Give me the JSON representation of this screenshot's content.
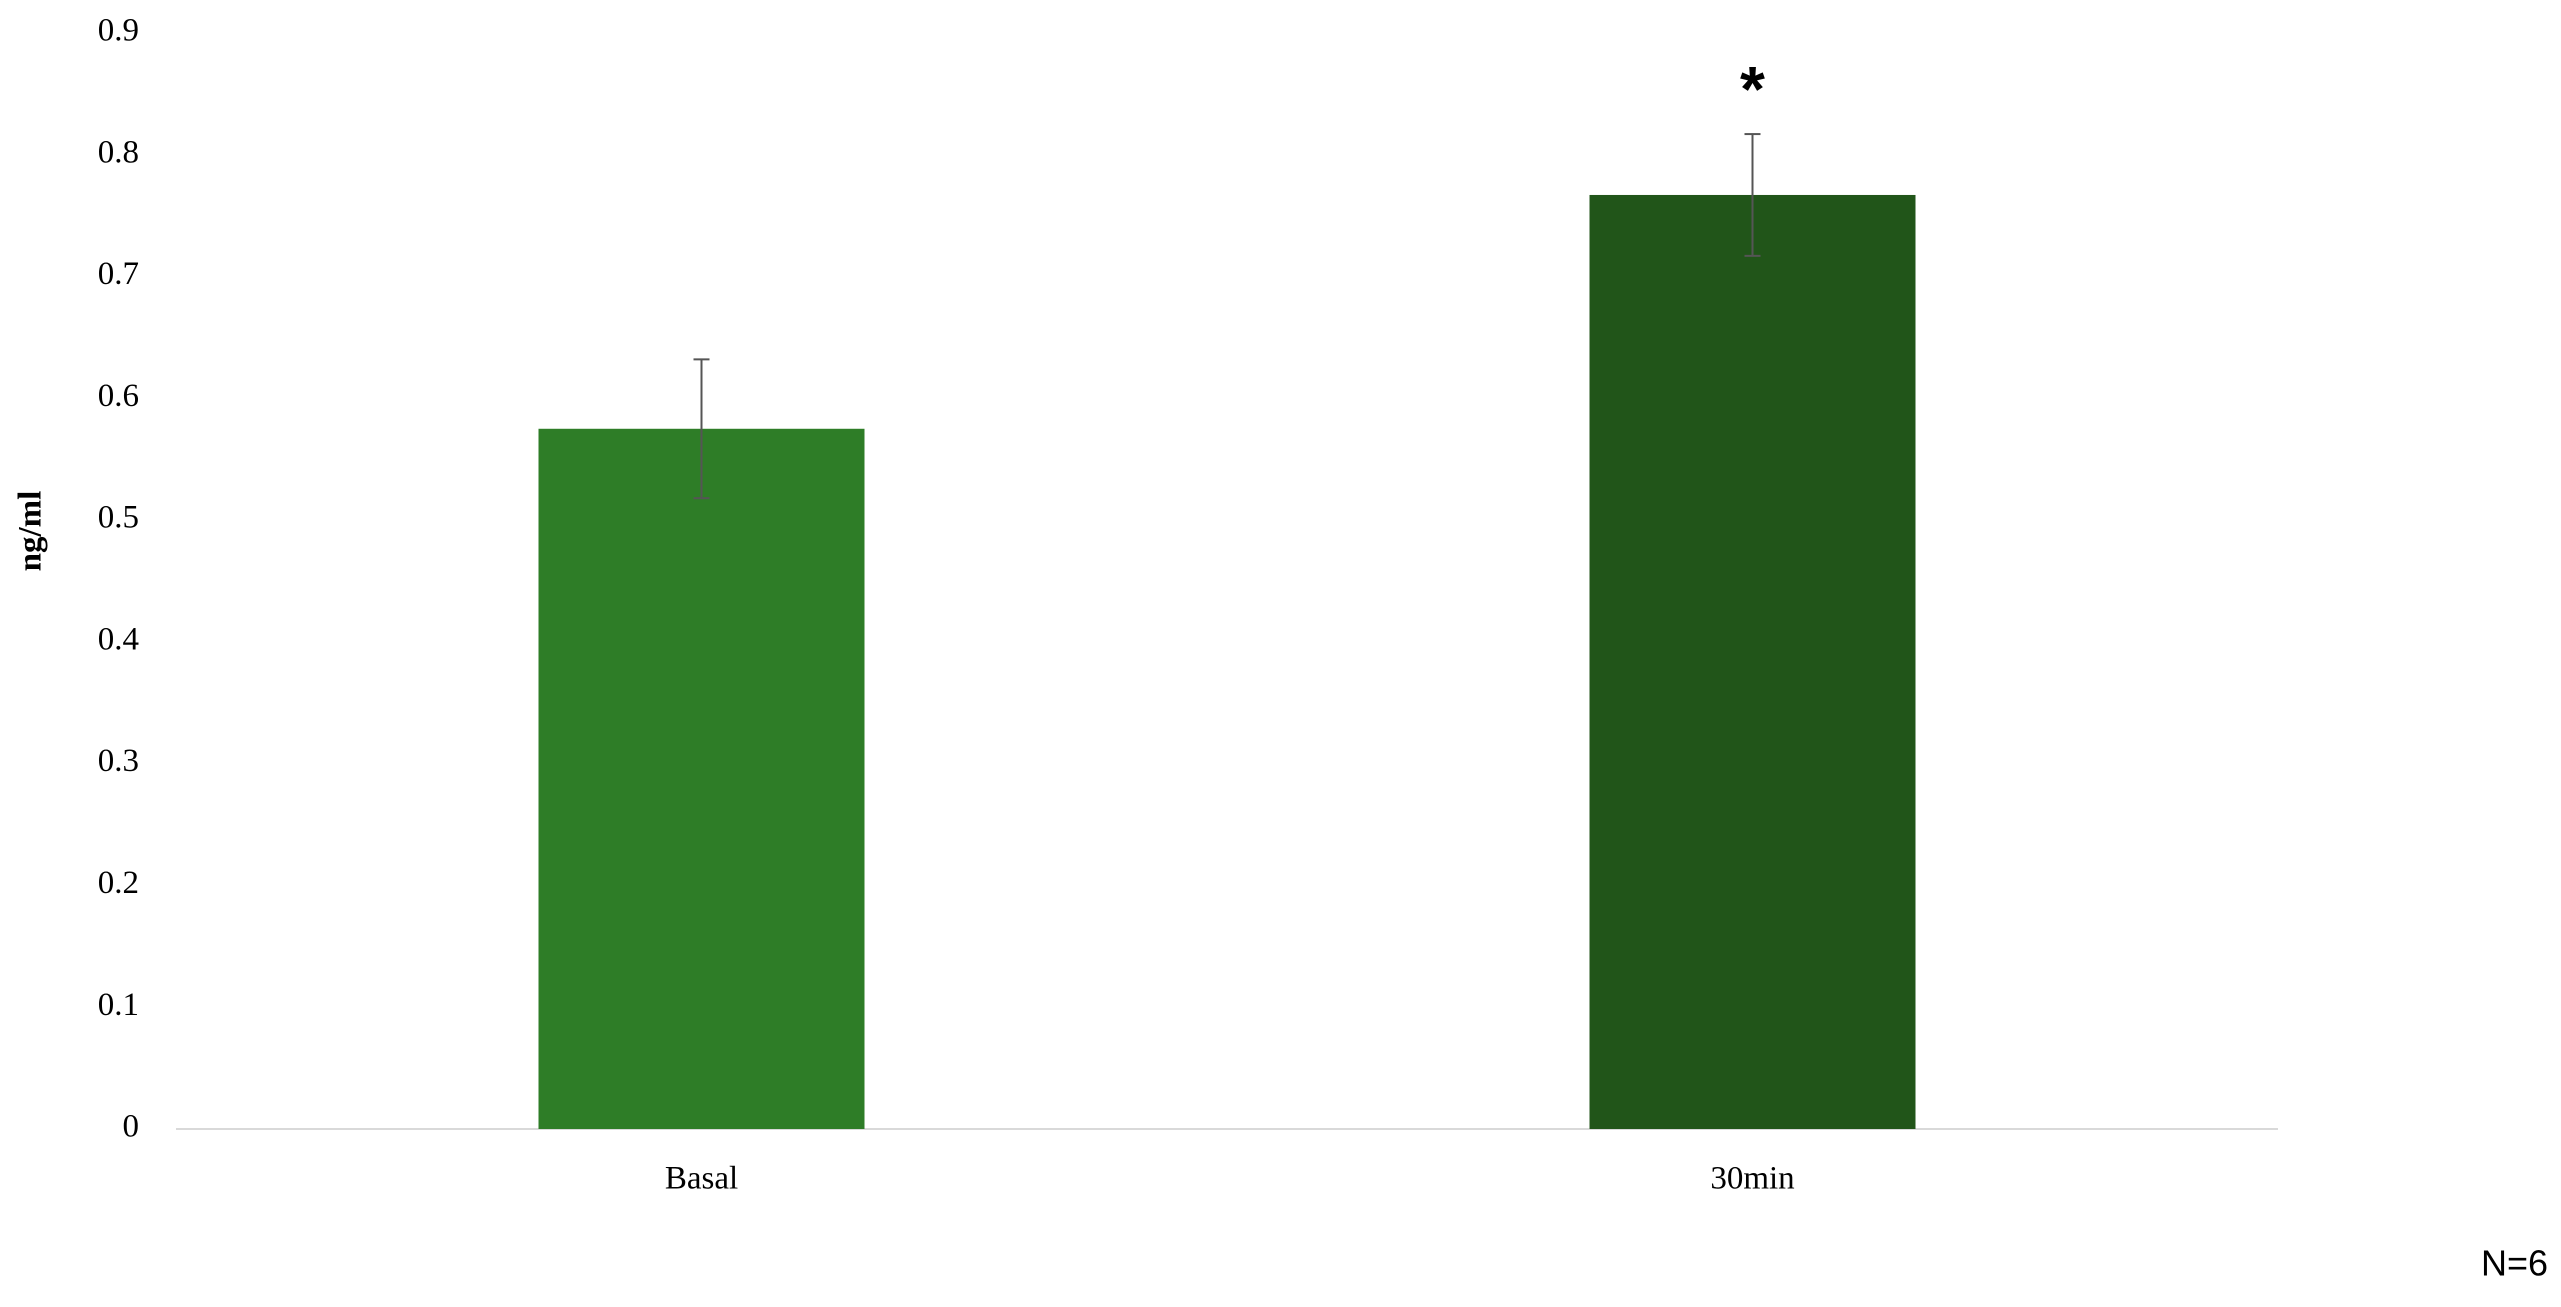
{
  "chart_data": {
    "type": "bar",
    "y_label": "ng/ml",
    "categories": [
      "Basal",
      "30min"
    ],
    "values": [
      0.575,
      0.767
    ],
    "errors": [
      0.057,
      0.05
    ],
    "colors": [
      "#2e7d27",
      "#215519"
    ],
    "ylim": [
      0,
      0.9
    ],
    "yticks": [
      0,
      0.1,
      0.2,
      0.3,
      0.4,
      0.5,
      0.6,
      0.7,
      0.8,
      0.9
    ],
    "annotations": [
      {
        "text": "*",
        "category": 1
      }
    ],
    "note": "N=6"
  }
}
